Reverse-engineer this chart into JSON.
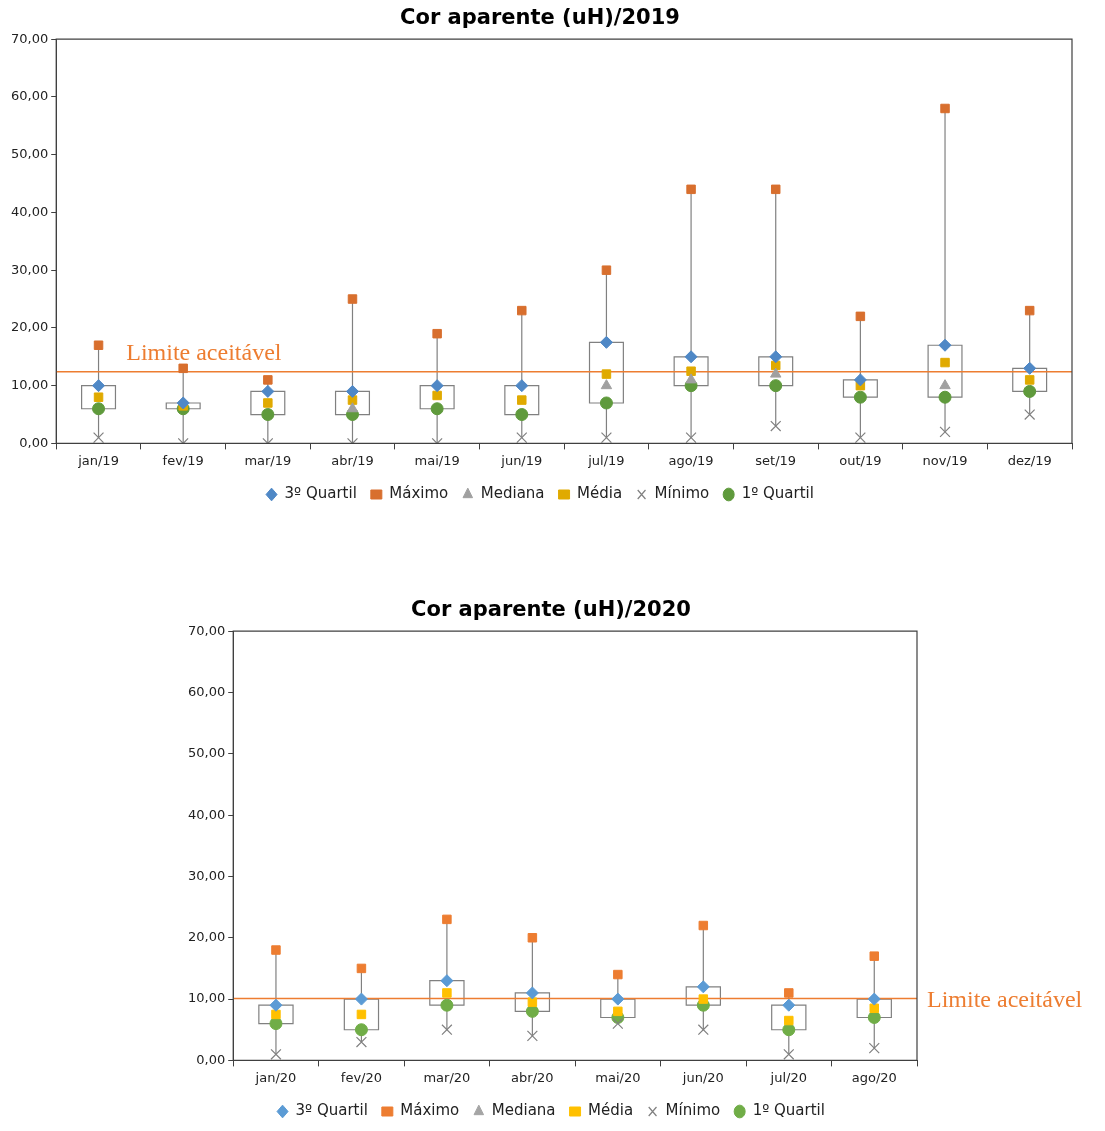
{
  "chart_data": [
    {
      "type": "box",
      "title": "Cor aparente (uH)/2019",
      "categories": [
        "jan/19",
        "fev/19",
        "mar/19",
        "abr/19",
        "mai/19",
        "jun/19",
        "jul/19",
        "ago/19",
        "set/19",
        "out/19",
        "nov/19",
        "dez/19"
      ],
      "boxes": [
        {
          "low": 1,
          "q1": 6,
          "q3": 10,
          "high": 17
        },
        {
          "low": 0,
          "q1": 6,
          "q3": 7,
          "high": 13
        },
        {
          "low": 0,
          "q1": 5,
          "q3": 9,
          "high": 11
        },
        {
          "low": 0,
          "q1": 5,
          "q3": 9,
          "high": 25
        },
        {
          "low": 0,
          "q1": 6,
          "q3": 10,
          "high": 19
        },
        {
          "low": 1,
          "q1": 5,
          "q3": 10,
          "high": 23
        },
        {
          "low": 1,
          "q1": 7,
          "q3": 17.5,
          "high": 30
        },
        {
          "low": 1,
          "q1": 10,
          "q3": 15,
          "high": 44
        },
        {
          "low": 3,
          "q1": 10,
          "q3": 15,
          "high": 44
        },
        {
          "low": 1,
          "q1": 8,
          "q3": 11,
          "high": 22
        },
        {
          "low": 2,
          "q1": 8,
          "q3": 17,
          "high": 58
        },
        {
          "low": 5,
          "q1": 9,
          "q3": 13,
          "high": 23
        }
      ],
      "series": [
        {
          "type": "scatter",
          "name": "3º Quartil",
          "color": "#4f88c6",
          "marker": "diamond",
          "values": [
            10,
            7,
            9,
            9,
            10,
            10,
            17.5,
            15,
            15,
            11,
            17,
            13
          ]
        },
        {
          "type": "scatter",
          "name": "Máximo",
          "color": "#d86f2e",
          "marker": "square",
          "values": [
            17,
            13,
            11,
            25,
            19,
            23,
            30,
            44,
            44,
            22,
            58,
            23
          ]
        },
        {
          "type": "scatter",
          "name": "Mediana",
          "color": "#a0a0a0",
          "marker": "triangle",
          "values": [
            null,
            null,
            null,
            6,
            null,
            null,
            10,
            11,
            12,
            null,
            10,
            null
          ]
        },
        {
          "type": "scatter",
          "name": "Média",
          "color": "#e0aa00",
          "marker": "square",
          "values": [
            8,
            6.5,
            7,
            7.5,
            8.3,
            7.5,
            12,
            12.5,
            13.5,
            10,
            14,
            11
          ]
        },
        {
          "type": "scatter",
          "name": "Mínimo",
          "color": "#808080",
          "marker": "cross",
          "values": [
            1,
            0,
            0,
            0,
            0,
            1,
            1,
            1,
            3,
            1,
            2,
            5
          ]
        },
        {
          "type": "scatter",
          "name": "1º Quartil",
          "color": "#5f9a3c",
          "marker": "circle",
          "values": [
            6,
            6,
            5,
            5,
            6,
            5,
            7,
            10,
            10,
            8,
            8,
            9
          ]
        }
      ],
      "ylim": [
        0,
        70
      ],
      "yticks": [
        {
          "value": 0,
          "label": "0,00"
        },
        {
          "value": 10,
          "label": "10,00"
        },
        {
          "value": 20,
          "label": "20,00"
        },
        {
          "value": 30,
          "label": "30,00"
        },
        {
          "value": 40,
          "label": "40,00"
        },
        {
          "value": 50,
          "label": "50,00"
        },
        {
          "value": 60,
          "label": "60,00"
        },
        {
          "value": 70,
          "label": "70,00"
        }
      ],
      "ref_lines": [
        {
          "axis": "y",
          "value": 12.4,
          "label": "Limite aceitável",
          "color": "#ed7d31"
        }
      ],
      "legend": "bottom"
    },
    {
      "type": "box",
      "title": "Cor aparente (uH)/2020",
      "categories": [
        "jan/20",
        "fev/20",
        "mar/20",
        "abr/20",
        "mai/20",
        "jun/20",
        "jul/20",
        "ago/20"
      ],
      "boxes": [
        {
          "low": 1,
          "q1": 6,
          "q3": 9,
          "high": 18
        },
        {
          "low": 3,
          "q1": 5,
          "q3": 10,
          "high": 15
        },
        {
          "low": 5,
          "q1": 9,
          "q3": 13,
          "high": 23
        },
        {
          "low": 4,
          "q1": 8,
          "q3": 11,
          "high": 20
        },
        {
          "low": 6,
          "q1": 7,
          "q3": 10,
          "high": 14
        },
        {
          "low": 5,
          "q1": 9,
          "q3": 12,
          "high": 22
        },
        {
          "low": 1,
          "q1": 5,
          "q3": 9,
          "high": 11
        },
        {
          "low": 2,
          "q1": 7,
          "q3": 10,
          "high": 17
        }
      ],
      "series": [
        {
          "type": "scatter",
          "name": "3º Quartil",
          "color": "#5b9bd5",
          "marker": "diamond",
          "values": [
            9,
            10,
            13,
            11,
            10,
            12,
            9,
            10
          ]
        },
        {
          "type": "scatter",
          "name": "Máximo",
          "color": "#ed7d31",
          "marker": "square",
          "values": [
            18,
            15,
            23,
            20,
            14,
            22,
            11,
            17
          ]
        },
        {
          "type": "scatter",
          "name": "Mediana",
          "color": "#a5a5a5",
          "marker": "triangle",
          "values": [
            null,
            null,
            null,
            null,
            null,
            null,
            null,
            null
          ]
        },
        {
          "type": "scatter",
          "name": "Média",
          "color": "#ffc000",
          "marker": "square",
          "values": [
            7.5,
            7.5,
            11,
            9.5,
            8,
            10,
            6.5,
            8.5
          ]
        },
        {
          "type": "scatter",
          "name": "Mínimo",
          "color": "#808080",
          "marker": "cross",
          "values": [
            1,
            3,
            5,
            4,
            6,
            5,
            1,
            2
          ]
        },
        {
          "type": "scatter",
          "name": "1º Quartil",
          "color": "#70ad47",
          "marker": "circle",
          "values": [
            6,
            5,
            9,
            8,
            7,
            9,
            5,
            7
          ]
        }
      ],
      "ylim": [
        0,
        70
      ],
      "yticks": [
        {
          "value": 0,
          "label": "0,00"
        },
        {
          "value": 10,
          "label": "10,00"
        },
        {
          "value": 20,
          "label": "20,00"
        },
        {
          "value": 30,
          "label": "30,00"
        },
        {
          "value": 40,
          "label": "40,00"
        },
        {
          "value": 50,
          "label": "50,00"
        },
        {
          "value": 60,
          "label": "60,00"
        },
        {
          "value": 70,
          "label": "70,00"
        }
      ],
      "ref_lines": [
        {
          "axis": "y",
          "value": 10.1,
          "label": "Limite aceitável",
          "color": "#ed7d31"
        }
      ],
      "legend": "bottom"
    }
  ]
}
